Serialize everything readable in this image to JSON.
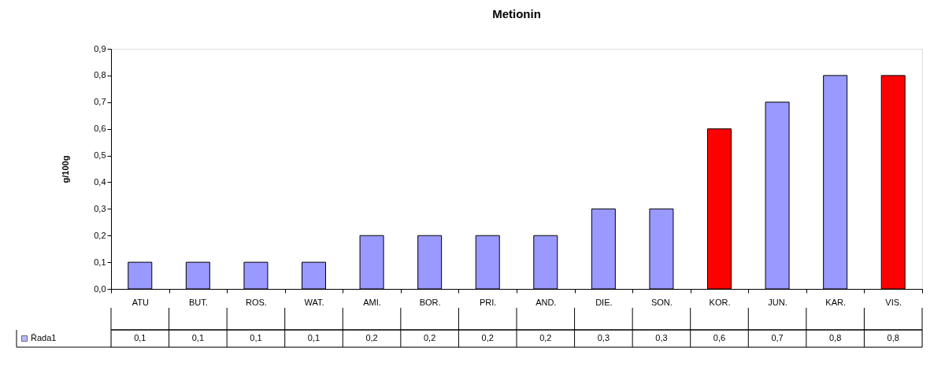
{
  "chart_data": {
    "type": "bar",
    "title": "Metionin",
    "ylabel": "g/100g",
    "categories": [
      "ATU",
      "BUT.",
      "ROS.",
      "WAT.",
      "AMI.",
      "BOR.",
      "PRI.",
      "AND.",
      "DIE.",
      "SON.",
      "KOR.",
      "JUN.",
      "KAR.",
      "VIS."
    ],
    "series": [
      {
        "name": "Řada1",
        "color": "#9999ff",
        "values": [
          0.1,
          0.1,
          0.1,
          0.1,
          0.2,
          0.2,
          0.2,
          0.2,
          0.3,
          0.3,
          0.6,
          0.7,
          0.8,
          0.8
        ],
        "colors": [
          "#9999ff",
          "#9999ff",
          "#9999ff",
          "#9999ff",
          "#9999ff",
          "#9999ff",
          "#9999ff",
          "#9999ff",
          "#9999ff",
          "#9999ff",
          "#ff0000",
          "#9999ff",
          "#9999ff",
          "#ff0000"
        ],
        "value_labels": [
          "0,1",
          "0,1",
          "0,1",
          "0,1",
          "0,2",
          "0,2",
          "0,2",
          "0,2",
          "0,3",
          "0,3",
          "0,6",
          "0,7",
          "0,8",
          "0,8"
        ]
      }
    ],
    "ylim": [
      0,
      0.9
    ],
    "yticks": [
      {
        "value": 0,
        "label": "0,0"
      },
      {
        "value": 0.1,
        "label": "0,1"
      },
      {
        "value": 0.2,
        "label": "0,2"
      },
      {
        "value": 0.3,
        "label": "0,3"
      },
      {
        "value": 0.4,
        "label": "0,4"
      },
      {
        "value": 0.5,
        "label": "0,5"
      },
      {
        "value": 0.6,
        "label": "0,6"
      },
      {
        "value": 0.7,
        "label": "0,7"
      },
      {
        "value": 0.8,
        "label": "0,8"
      },
      {
        "value": 0.9,
        "label": "0,9"
      }
    ],
    "grid": false,
    "legend": "bottom"
  }
}
